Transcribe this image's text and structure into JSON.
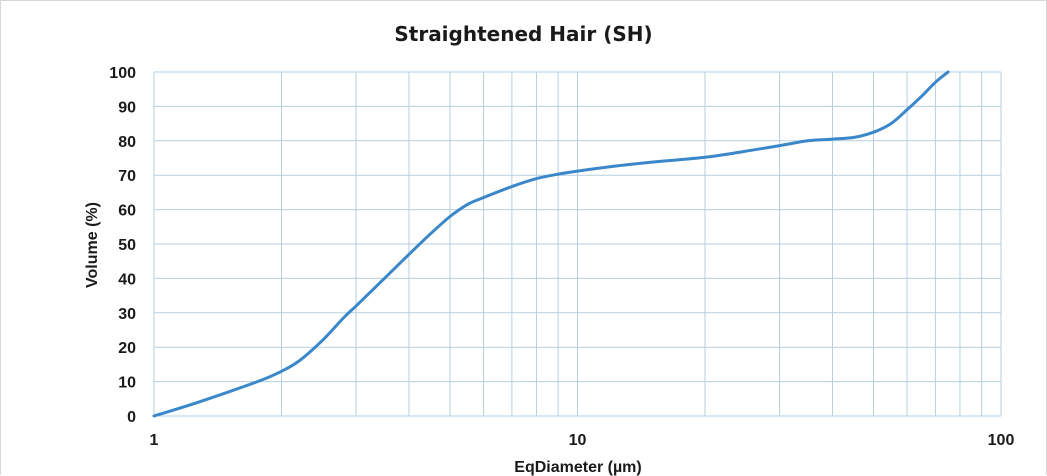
{
  "chart_data": {
    "type": "line",
    "title": "Straightened Hair (SH)",
    "xlabel": "EqDiameter (µm)",
    "ylabel": "Volume (%)",
    "x_scale": "log",
    "xlim": [
      1,
      100
    ],
    "ylim": [
      0,
      100
    ],
    "x_ticks": [
      1,
      10,
      100
    ],
    "y_ticks": [
      0,
      10,
      20,
      30,
      40,
      50,
      60,
      70,
      80,
      90,
      100
    ],
    "grid": true,
    "legend": "none",
    "line_color": "#3a87c9",
    "grid_color": "#b7cfe0",
    "series": [
      {
        "x": [
          1,
          1.2,
          1.5,
          1.8,
          2,
          2.2,
          2.5,
          2.8,
          3,
          3.5,
          4,
          4.5,
          5,
          5.5,
          6,
          7,
          8,
          9,
          10,
          12,
          15,
          20,
          25,
          30,
          35,
          40,
          45,
          50,
          55,
          60,
          65,
          70,
          75
        ],
        "y": [
          0,
          3,
          7,
          10.5,
          13,
          16,
          22,
          28.5,
          32,
          40,
          47,
          53,
          58,
          61.5,
          63.5,
          66.7,
          69,
          70.3,
          71.2,
          72.5,
          73.8,
          75.2,
          77,
          78.6,
          80,
          80.5,
          81,
          82.5,
          85,
          89,
          93,
          97,
          100
        ]
      }
    ]
  }
}
